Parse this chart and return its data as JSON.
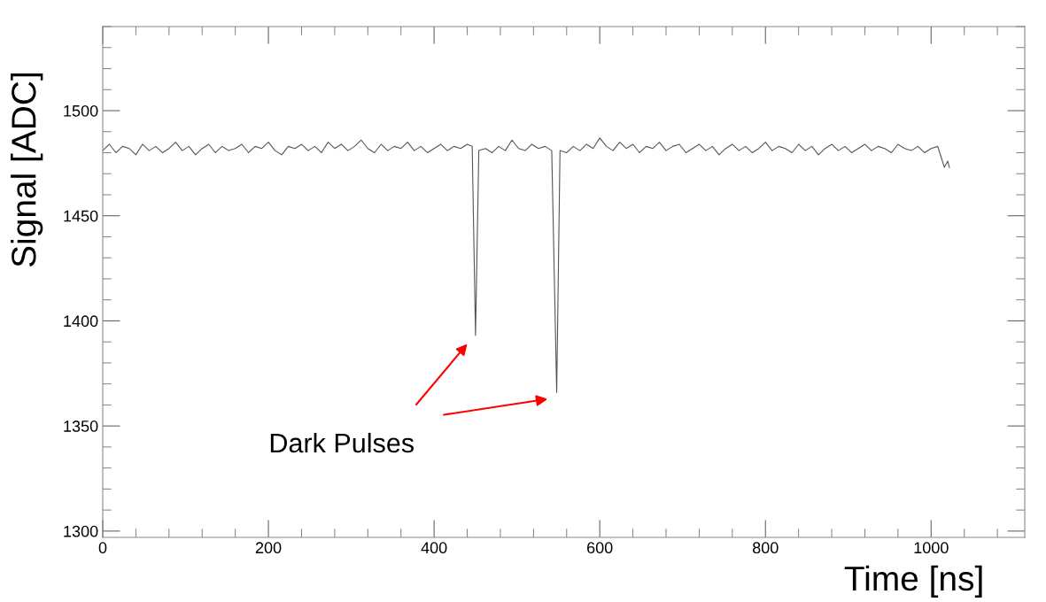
{
  "chart_data": {
    "type": "line",
    "xlabel": "Time [ns]",
    "ylabel": "Signal [ADC]",
    "xlim": [
      0,
      1113
    ],
    "ylim": [
      1297,
      1540
    ],
    "xticks": [
      0,
      200,
      400,
      600,
      800,
      1000
    ],
    "yticks": [
      1300,
      1350,
      1400,
      1450,
      1500
    ],
    "grid": false,
    "legend": false,
    "marker": "none",
    "line_style": "solid",
    "annotations": [
      "Dark Pulses"
    ],
    "series": [
      {
        "color": "#555555",
        "x": [
          0,
          8,
          16,
          24,
          32,
          40,
          48,
          56,
          64,
          72,
          80,
          88,
          96,
          104,
          112,
          120,
          128,
          136,
          144,
          152,
          160,
          168,
          176,
          184,
          192,
          200,
          208,
          216,
          224,
          232,
          240,
          248,
          256,
          264,
          272,
          280,
          288,
          296,
          304,
          312,
          320,
          328,
          336,
          344,
          352,
          360,
          368,
          376,
          384,
          392,
          400,
          408,
          416,
          424,
          432,
          440,
          446,
          450,
          454,
          462,
          470,
          478,
          486,
          494,
          502,
          510,
          518,
          526,
          534,
          542,
          548,
          552,
          560,
          568,
          576,
          584,
          592,
          600,
          608,
          616,
          624,
          632,
          640,
          648,
          656,
          664,
          672,
          680,
          688,
          696,
          704,
          712,
          720,
          728,
          736,
          744,
          752,
          760,
          768,
          776,
          784,
          792,
          800,
          808,
          816,
          824,
          832,
          840,
          848,
          856,
          864,
          872,
          880,
          888,
          896,
          904,
          912,
          920,
          928,
          936,
          944,
          952,
          960,
          968,
          976,
          984,
          992,
          1000,
          1008,
          1012,
          1016,
          1020,
          1022
        ],
        "values": [
          1481,
          1484,
          1480,
          1483,
          1482,
          1479,
          1484,
          1481,
          1483,
          1480,
          1482,
          1485,
          1481,
          1483,
          1479,
          1482,
          1484,
          1480,
          1483,
          1481,
          1482,
          1484,
          1480,
          1483,
          1482,
          1485,
          1481,
          1479,
          1483,
          1482,
          1484,
          1481,
          1483,
          1480,
          1485,
          1482,
          1484,
          1481,
          1483,
          1486,
          1482,
          1480,
          1484,
          1481,
          1483,
          1482,
          1485,
          1481,
          1483,
          1480,
          1482,
          1484,
          1481,
          1483,
          1482,
          1484,
          1483,
          1393,
          1481,
          1482,
          1480,
          1483,
          1481,
          1486,
          1482,
          1481,
          1484,
          1482,
          1483,
          1481,
          1366,
          1481,
          1480,
          1483,
          1481,
          1484,
          1482,
          1487,
          1483,
          1481,
          1485,
          1482,
          1484,
          1480,
          1483,
          1482,
          1485,
          1481,
          1483,
          1484,
          1480,
          1482,
          1484,
          1481,
          1483,
          1479,
          1482,
          1484,
          1481,
          1483,
          1480,
          1482,
          1485,
          1481,
          1483,
          1482,
          1480,
          1484,
          1481,
          1483,
          1479,
          1482,
          1484,
          1481,
          1483,
          1480,
          1482,
          1484,
          1481,
          1483,
          1482,
          1480,
          1484,
          1482,
          1481,
          1483,
          1480,
          1482,
          1483,
          1478,
          1473,
          1476,
          1473
        ]
      }
    ]
  }
}
